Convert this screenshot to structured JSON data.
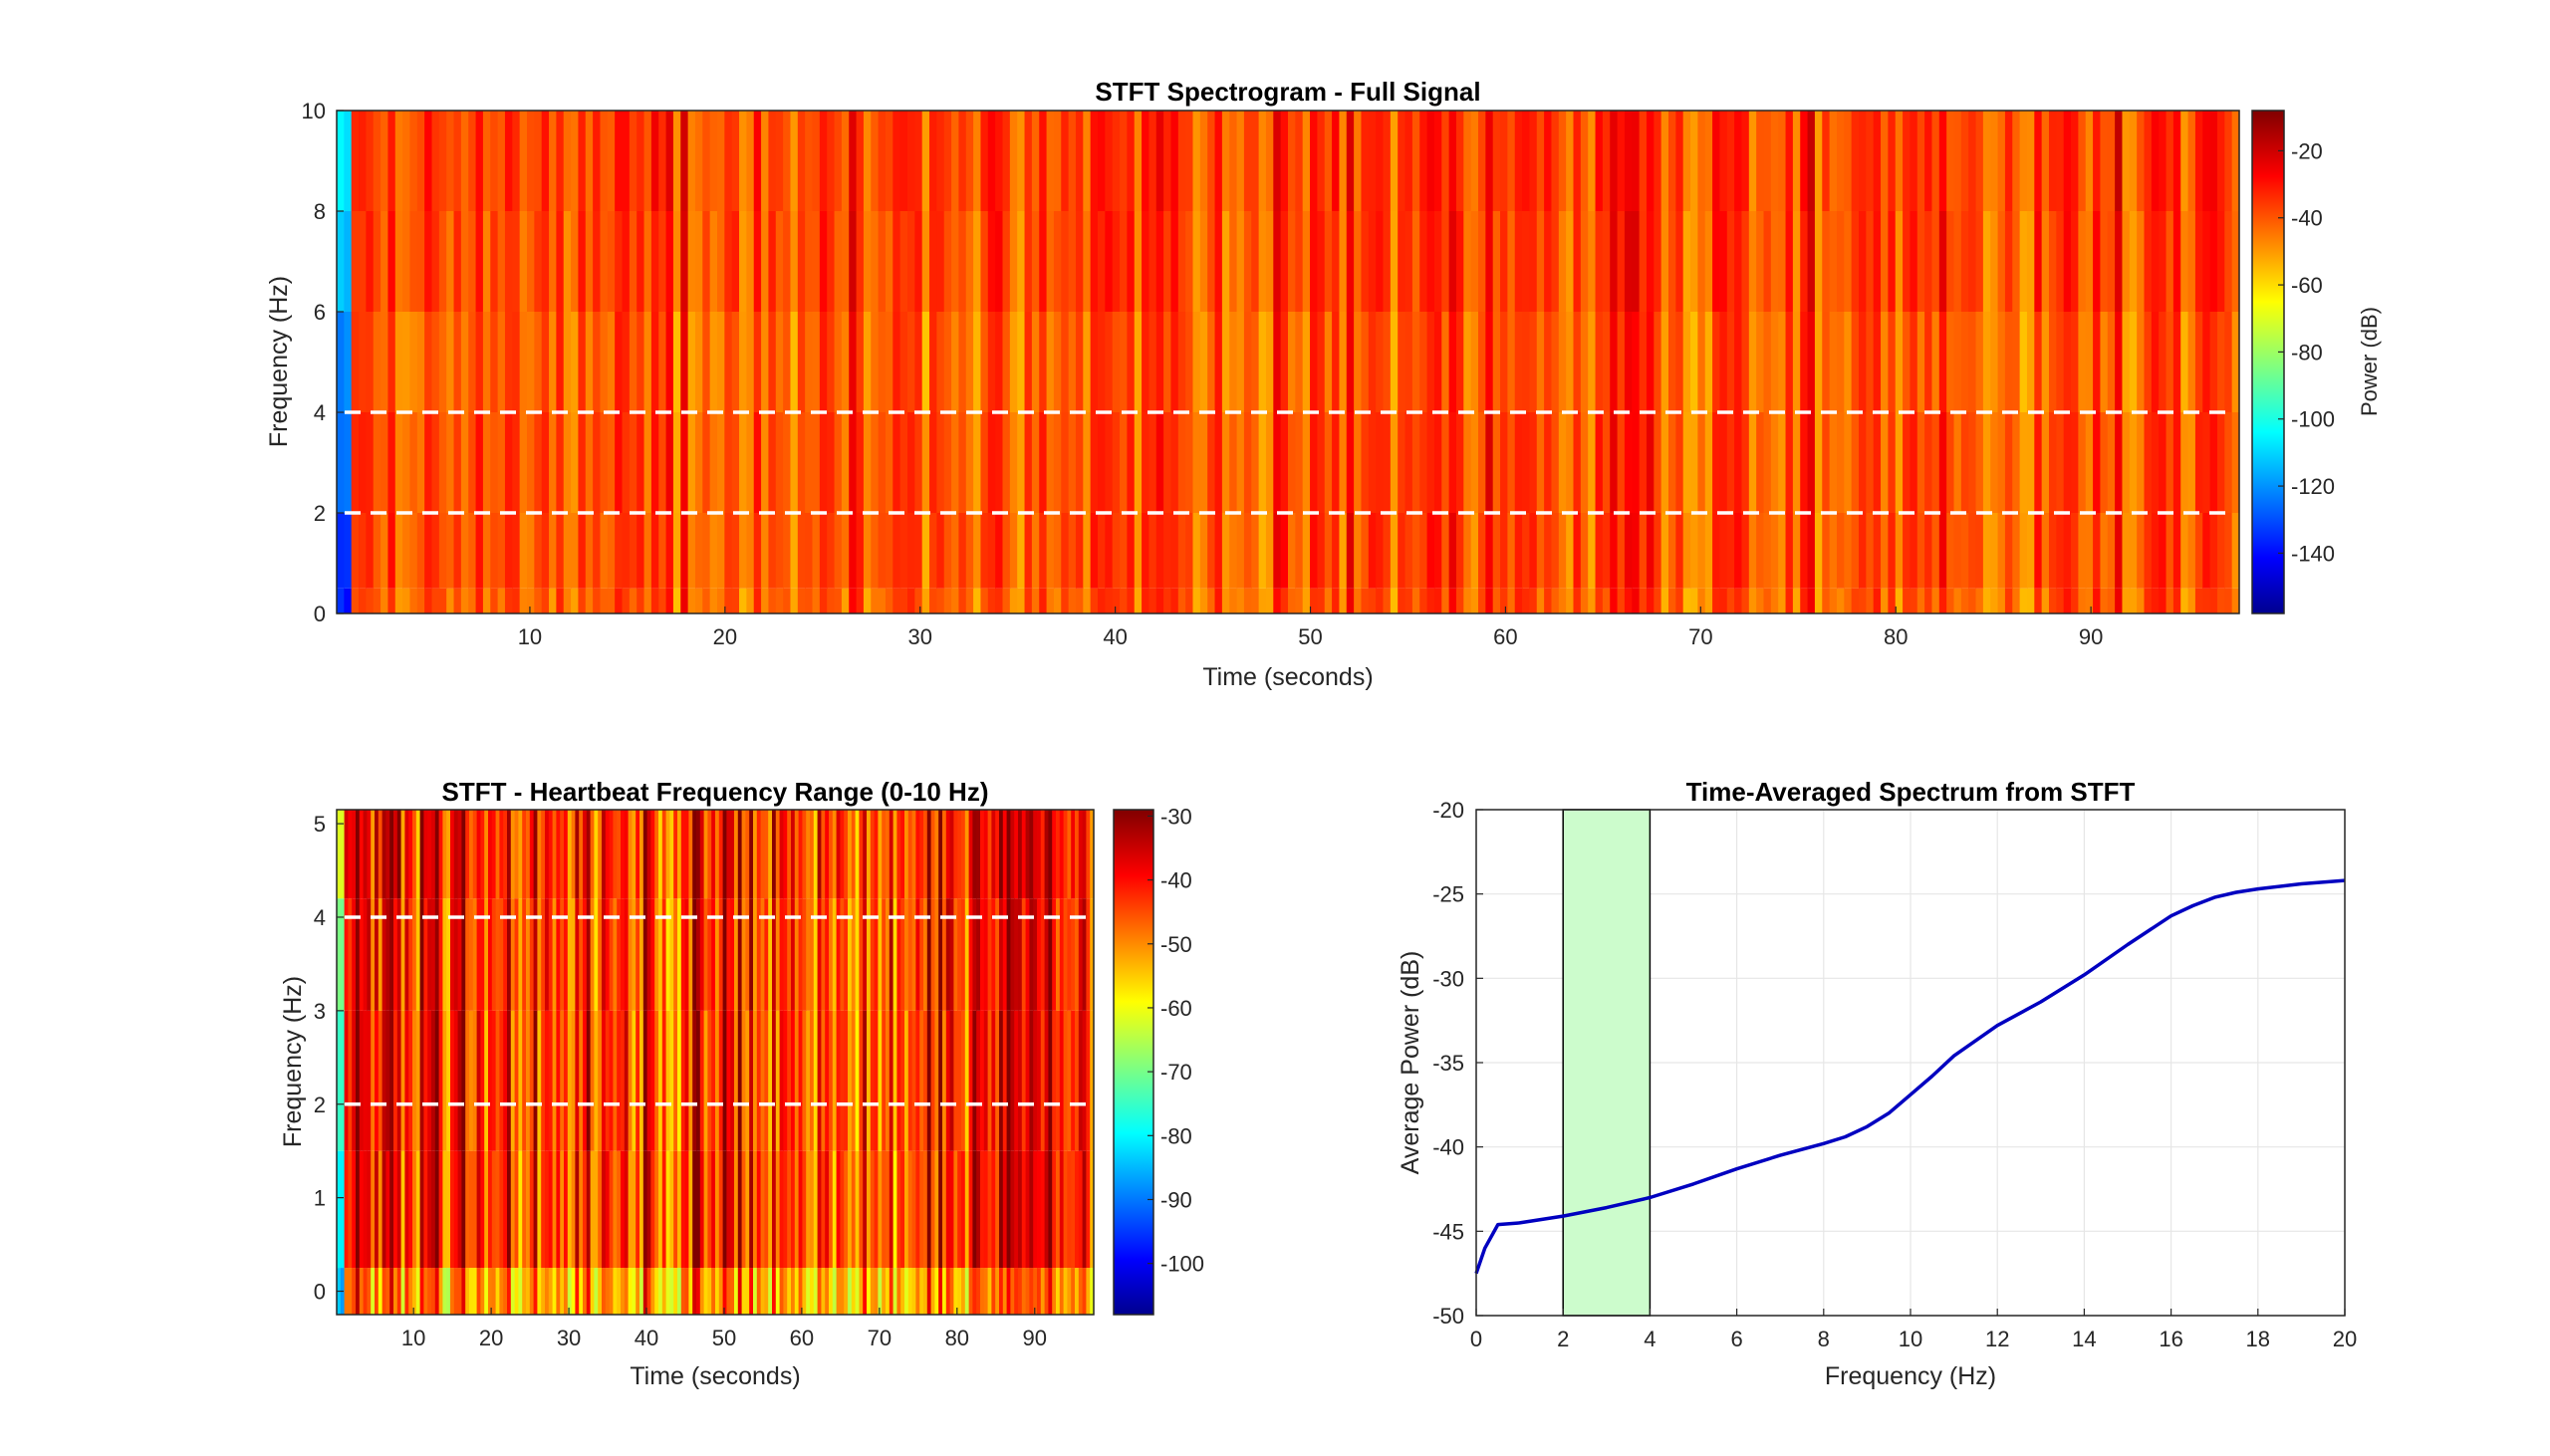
{
  "chart_data": [
    {
      "type": "heatmap",
      "title": "STFT Spectrogram - Full Signal",
      "xlabel": "Time (seconds)",
      "ylabel": "Frequency (Hz)",
      "xlim": [
        0.1,
        97.6
      ],
      "ylim": [
        0,
        10
      ],
      "xticks": [
        10,
        20,
        30,
        40,
        50,
        60,
        70,
        80,
        90
      ],
      "yticks": [
        0,
        2,
        4,
        6,
        8,
        10
      ],
      "colorbar": {
        "label": "Power (dB)",
        "range": [
          -158,
          -8
        ],
        "ticks": [
          -140,
          -120,
          -100,
          -80,
          -60,
          -40,
          -20
        ]
      },
      "colormap": "jet",
      "typical_power_db": -40,
      "reference_lines_hz": [
        2,
        4
      ]
    },
    {
      "type": "heatmap",
      "title": "STFT - Heartbeat Frequency Range (0-10 Hz)",
      "xlabel": "Time (seconds)",
      "ylabel": "Frequency (Hz)",
      "xlim": [
        0.1,
        97.6
      ],
      "ylim": [
        -0.25,
        5.15
      ],
      "xticks": [
        10,
        20,
        30,
        40,
        50,
        60,
        70,
        80,
        90
      ],
      "yticks": [
        0,
        1,
        2,
        3,
        4,
        5
      ],
      "colorbar": {
        "label": "",
        "range": [
          -108,
          -29
        ],
        "ticks": [
          -100,
          -90,
          -80,
          -70,
          -60,
          -50,
          -40,
          -30
        ]
      },
      "colormap": "jet",
      "typical_power_db": -45,
      "reference_lines_hz": [
        2,
        4
      ]
    },
    {
      "type": "line",
      "title": "Time-Averaged Spectrum from STFT",
      "xlabel": "Frequency (Hz)",
      "ylabel": "Average Power (dB)",
      "xlim": [
        0,
        20
      ],
      "ylim": [
        -50,
        -20
      ],
      "xticks": [
        0,
        2,
        4,
        6,
        8,
        10,
        12,
        14,
        16,
        18,
        20
      ],
      "yticks": [
        -50,
        -45,
        -40,
        -35,
        -30,
        -25,
        -20
      ],
      "grid": true,
      "highlight_band_hz": [
        2,
        4
      ],
      "series": [
        {
          "color": "#0000c0",
          "x": [
            0,
            0.2,
            0.5,
            1,
            2,
            3,
            4,
            5,
            6,
            7,
            8,
            8.5,
            9,
            9.5,
            10,
            10.5,
            11,
            12,
            13,
            14,
            15,
            16,
            16.5,
            17,
            17.5,
            18,
            19,
            20
          ],
          "y": [
            -47.5,
            -46,
            -44.6,
            -44.5,
            -44.1,
            -43.6,
            -43.0,
            -42.2,
            -41.3,
            -40.5,
            -39.8,
            -39.4,
            -38.8,
            -38.0,
            -36.9,
            -35.8,
            -34.6,
            -32.8,
            -31.4,
            -29.8,
            -28.0,
            -26.3,
            -25.7,
            -25.2,
            -24.9,
            -24.7,
            -24.4,
            -24.2
          ]
        }
      ]
    }
  ],
  "colors": {
    "reference_line": "#ffffff",
    "highlight_band": "#ccfccc",
    "grid": "#e6e6e6",
    "axis": "#262626"
  }
}
